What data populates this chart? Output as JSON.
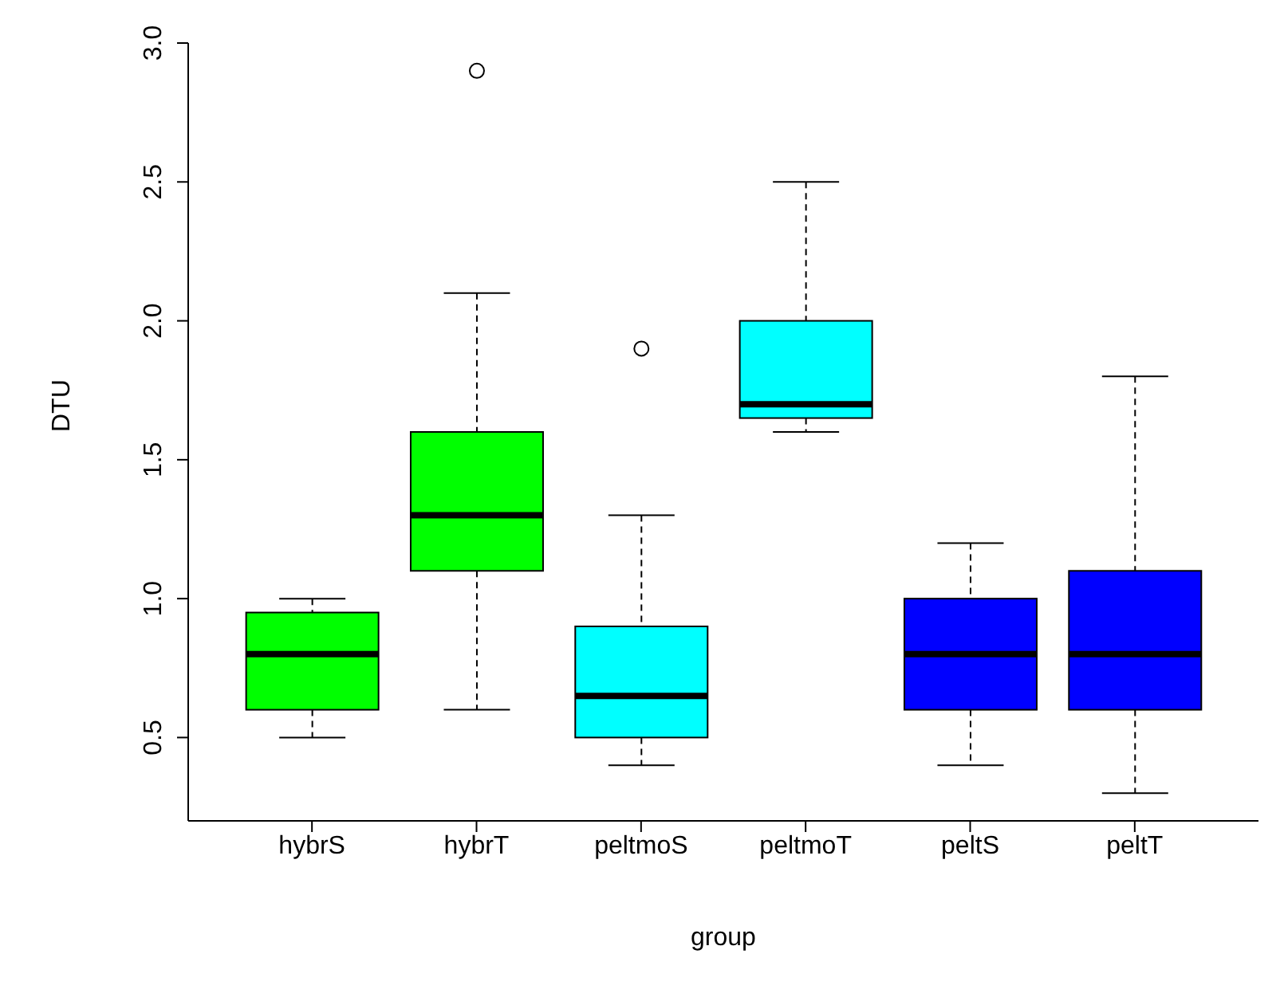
{
  "chart_data": {
    "type": "box",
    "xlabel": "group",
    "ylabel": "DTU",
    "categories": [
      "hybrS",
      "hybrT",
      "peltmoS",
      "peltmoT",
      "peltS",
      "peltT"
    ],
    "colors": [
      "#00ff00",
      "#00ff00",
      "#00ffff",
      "#00ffff",
      "#0000ff",
      "#0000ff"
    ],
    "boxes": [
      {
        "low": 0.5,
        "q1": 0.6,
        "median": 0.8,
        "q3": 0.95,
        "high": 1.0
      },
      {
        "low": 0.6,
        "q1": 1.1,
        "median": 1.3,
        "q3": 1.6,
        "high": 2.1,
        "outliers": [
          2.9
        ]
      },
      {
        "low": 0.4,
        "q1": 0.5,
        "median": 0.65,
        "q3": 0.9,
        "high": 1.3,
        "outliers": [
          1.9
        ]
      },
      {
        "low": 1.6,
        "q1": 1.65,
        "median": 1.7,
        "q3": 2.0,
        "high": 2.5
      },
      {
        "low": 0.4,
        "q1": 0.6,
        "median": 0.8,
        "q3": 1.0,
        "high": 1.2
      },
      {
        "low": 0.3,
        "q1": 0.6,
        "median": 0.8,
        "q3": 1.1,
        "high": 1.8
      }
    ],
    "ylim": [
      0.2,
      3.0
    ],
    "yticks": [
      {
        "value": 0.5,
        "label": "0.5"
      },
      {
        "value": 1,
        "label": "1.0"
      },
      {
        "value": 1.5,
        "label": "1.5"
      },
      {
        "value": 2,
        "label": "2.0"
      },
      {
        "value": 2.5,
        "label": "2.5"
      },
      {
        "value": 3,
        "label": "3.0"
      }
    ],
    "grid": false,
    "legend": false
  }
}
